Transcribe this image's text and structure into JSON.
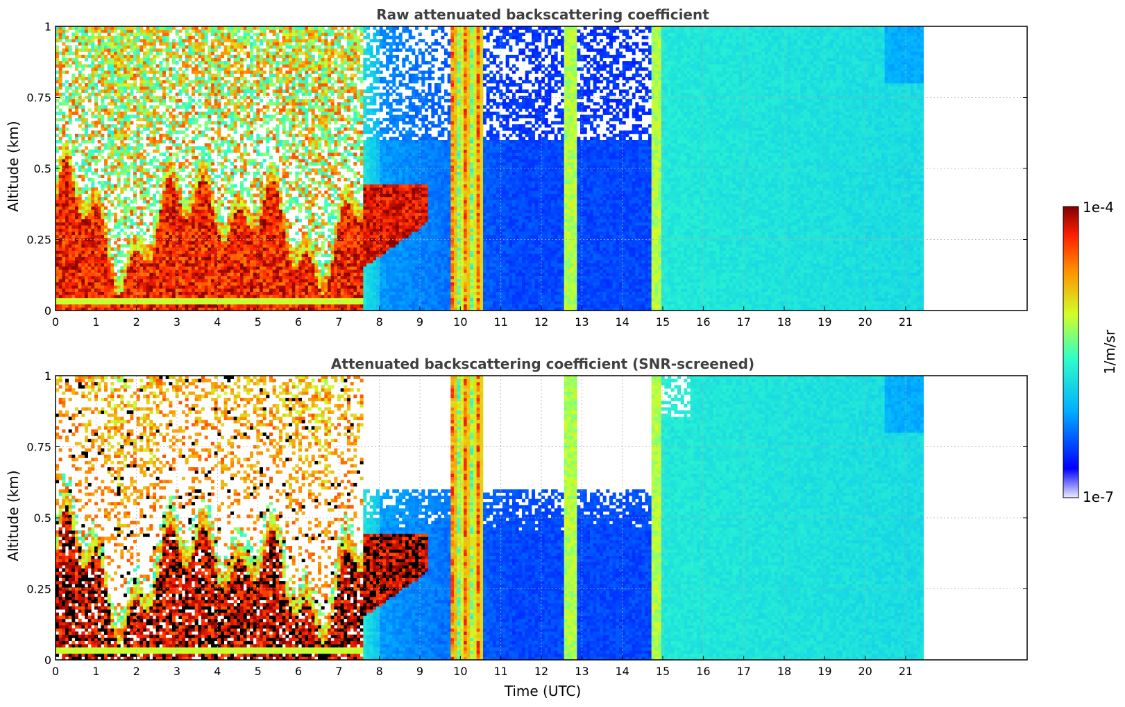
{
  "chart_data": [
    {
      "type": "heatmap",
      "title": "Raw attenuated backscattering coefficient",
      "xlabel": "",
      "ylabel": "Altitude (km)",
      "xlim": [
        0,
        24
      ],
      "ylim": [
        0,
        1
      ],
      "x_ticks": [
        "0",
        "1",
        "2",
        "3",
        "4",
        "5",
        "6",
        "7",
        "8",
        "9",
        "10",
        "11",
        "12",
        "13",
        "14",
        "15",
        "16",
        "17",
        "18",
        "19",
        "20",
        "21"
      ],
      "y_ticks": [
        "0",
        "0.25",
        "0.5",
        "0.75",
        "1"
      ],
      "grid": true,
      "data_end_hour": 21.45,
      "screened": false
    },
    {
      "type": "heatmap",
      "title": "Attenuated backscattering coefficient (SNR-screened)",
      "xlabel": "Time (UTC)",
      "ylabel": "Altitude (km)",
      "xlim": [
        0,
        24
      ],
      "ylim": [
        0,
        1
      ],
      "x_ticks": [
        "0",
        "1",
        "2",
        "3",
        "4",
        "5",
        "6",
        "7",
        "8",
        "9",
        "10",
        "11",
        "12",
        "13",
        "14",
        "15",
        "16",
        "17",
        "18",
        "19",
        "20",
        "21"
      ],
      "y_ticks": [
        "0",
        "0.25",
        "0.5",
        "0.75",
        "1"
      ],
      "grid": true,
      "data_end_hour": 21.45,
      "screened": true
    }
  ],
  "colorbar": {
    "label": "1/m/sr",
    "max_label": "1e-4",
    "min_label": "1e-7",
    "scale": "log",
    "colormap": "jet",
    "colors": [
      "#ececff",
      "#0000ff",
      "#00b0ff",
      "#30ffc8",
      "#d2ff26",
      "#ff9000",
      "#ff2000",
      "#800000"
    ]
  }
}
